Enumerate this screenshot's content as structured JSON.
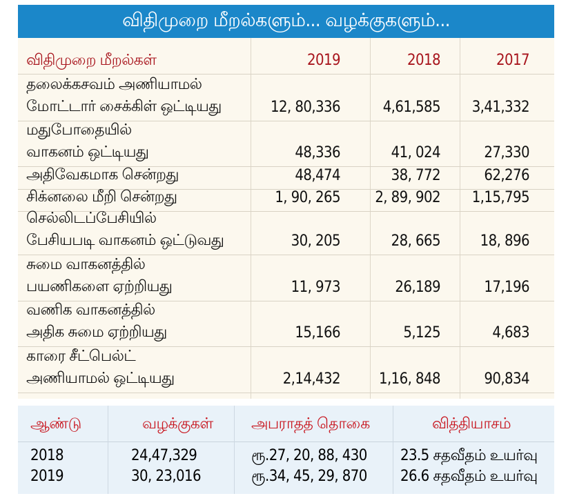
{
  "title": "விதிமுறை மீறல்களும்... வழக்குகளும்...",
  "violations_table": {
    "headers": [
      "விதிமுறை மீறல்கள்",
      "2019",
      "2018",
      "2017"
    ],
    "rows": [
      {
        "label": [
          "தலைக்கசவம் அணியாமல்",
          "மோட்டார் சைக்கிள் ஒட்டியது"
        ],
        "values": [
          "12, 80,336",
          "4,61,585",
          "3,41,332"
        ]
      },
      {
        "label": [
          "மதுபோதையில்",
          "வாகனம் ஒட்டியது"
        ],
        "values": [
          "48,336",
          "41, 024",
          "27,330"
        ]
      },
      {
        "label": [
          "அதிவேகமாக சென்றது"
        ],
        "values": [
          "48,474",
          "38, 772",
          "62,276"
        ]
      },
      {
        "label": [
          "சிக்னலை மீறி சென்றது"
        ],
        "values": [
          "1, 90, 265",
          "2, 89, 902",
          "1,15,795"
        ]
      },
      {
        "label": [
          "செல்லிடப்பேசியில்",
          "பேசியபடி வாகனம் ஒட்டுவது"
        ],
        "values": [
          "30, 205",
          "28, 665",
          "18, 896"
        ]
      },
      {
        "label": [
          "சுமை வாகனத்தில்",
          "பயணிகளை ஏற்றியது"
        ],
        "values": [
          "11, 973",
          "26,189",
          "17,196"
        ]
      },
      {
        "label": [
          "வணிக வாகனத்தில்",
          "அதிக சுமை ஏற்றியது"
        ],
        "values": [
          "15,166",
          "5,125",
          "4,683"
        ]
      },
      {
        "label": [
          "காரை சீட்பெல்ட்",
          "அணியாமல் ஒட்டியது"
        ],
        "values": [
          "2,14,432",
          "1,16, 848",
          "90,834"
        ]
      }
    ]
  },
  "cases_table": {
    "headers": [
      "ஆண்டு",
      "வழக்குகள்",
      "அபராதத் தொகை",
      "வித்தியாசம்"
    ],
    "rows": [
      [
        "2018",
        "24,47,329",
        "ரூ.27, 20, 88, 430",
        "23.5 சதவீதம் உயர்வு"
      ],
      [
        "2019",
        "30, 23,016",
        "ரூ.34, 45, 29, 870",
        "26.6 சதவீதம் உயர்வு"
      ]
    ]
  },
  "colors": {
    "banner": "#1b87c9",
    "header_text": "#a8151d",
    "main_bg": "#fcf8ee",
    "bottom_bg": "#e9f2f9"
  }
}
